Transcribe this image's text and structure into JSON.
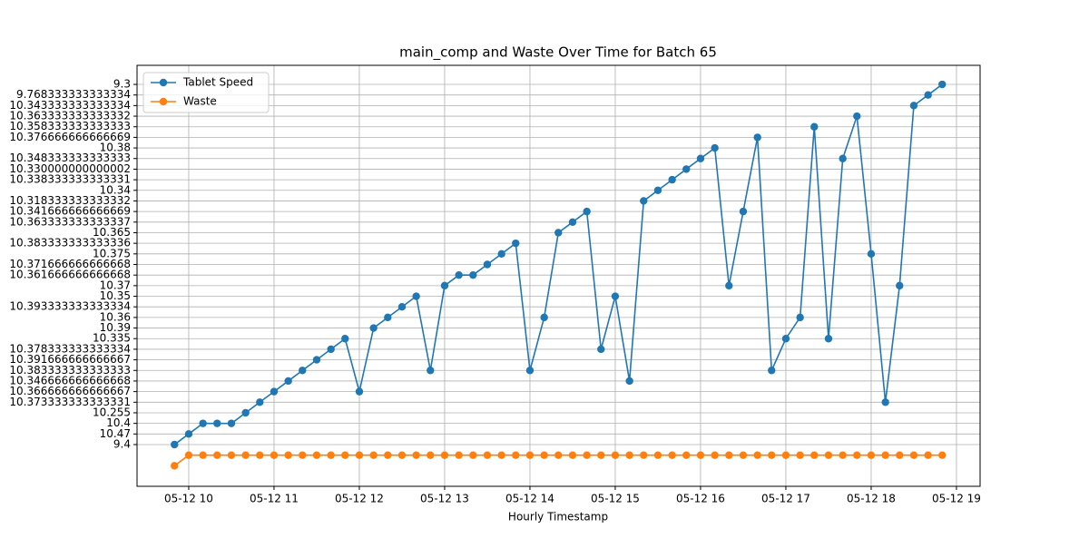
{
  "chart_data": {
    "type": "line",
    "title": "main_comp and Waste Over Time for Batch 65",
    "x_label": "Hourly Timestamp",
    "x": [
      9.833,
      10,
      10.167,
      10.333,
      10.5,
      10.667,
      10.833,
      11,
      11.167,
      11.333,
      11.5,
      11.667,
      11.833,
      12,
      12.167,
      12.333,
      12.5,
      12.667,
      12.833,
      13,
      13.167,
      13.333,
      13.5,
      13.667,
      13.833,
      14,
      14.167,
      14.333,
      14.5,
      14.667,
      14.833,
      15,
      15.167,
      15.333,
      15.5,
      15.667,
      15.833,
      16,
      16.167,
      16.333,
      16.5,
      16.667,
      16.833,
      17,
      17.167,
      17.333,
      17.5,
      17.667,
      17.833,
      18,
      18.167,
      18.333,
      18.5,
      18.667,
      18.833
    ],
    "series": [
      {
        "name": "Tablet Speed",
        "color": "#1f77b4",
        "values": [
          0,
          1,
          2,
          2,
          2,
          3,
          4,
          5,
          6,
          7,
          8,
          9,
          10,
          5,
          11,
          12,
          13,
          14,
          7,
          15,
          16,
          16,
          17,
          18,
          19,
          7,
          12,
          20,
          21,
          22,
          9,
          14,
          6,
          23,
          24,
          25,
          26,
          27,
          28,
          15,
          22,
          29,
          7,
          10,
          12,
          30,
          10,
          27,
          31,
          18,
          4,
          15,
          32,
          33,
          34
        ]
      },
      {
        "name": "Waste",
        "color": "#ff7f0e",
        "values": [
          -2,
          -1,
          -1,
          -1,
          -1,
          -1,
          -1,
          -1,
          -1,
          -1,
          -1,
          -1,
          -1,
          -1,
          -1,
          -1,
          -1,
          -1,
          -1,
          -1,
          -1,
          -1,
          -1,
          -1,
          -1,
          -1,
          -1,
          -1,
          -1,
          -1,
          -1,
          -1,
          -1,
          -1,
          -1,
          -1,
          -1,
          -1,
          -1,
          -1,
          -1,
          -1,
          -1,
          -1,
          -1,
          -1,
          -1,
          -1,
          -1,
          -1,
          -1,
          -1,
          -1,
          -1,
          -1
        ]
      }
    ],
    "xlim": [
      9.394,
      19.277
    ],
    "xticks": [
      {
        "value": 10,
        "label": "05-12 10"
      },
      {
        "value": 11,
        "label": "05-12 11"
      },
      {
        "value": 12,
        "label": "05-12 12"
      },
      {
        "value": 13,
        "label": "05-12 13"
      },
      {
        "value": 14,
        "label": "05-12 14"
      },
      {
        "value": 15,
        "label": "05-12 15"
      },
      {
        "value": 16,
        "label": "05-12 16"
      },
      {
        "value": 17,
        "label": "05-12 17"
      },
      {
        "value": 18,
        "label": "05-12 18"
      },
      {
        "value": 19,
        "label": "05-12 19"
      }
    ],
    "ylim": [
      -3.94,
      35.8
    ],
    "yticks": [
      {
        "value": 0,
        "label": "9.4"
      },
      {
        "value": 1,
        "label": "10.47"
      },
      {
        "value": 2,
        "label": "10.4"
      },
      {
        "value": 3,
        "label": "10.255"
      },
      {
        "value": 4,
        "label": "10.373333333333331"
      },
      {
        "value": 5,
        "label": "10.366666666666667"
      },
      {
        "value": 6,
        "label": "10.346666666666668"
      },
      {
        "value": 7,
        "label": "10.383333333333333"
      },
      {
        "value": 8,
        "label": "10.391666666666667"
      },
      {
        "value": 9,
        "label": "10.378333333333334"
      },
      {
        "value": 10,
        "label": "10.335"
      },
      {
        "value": 11,
        "label": "10.39"
      },
      {
        "value": 12,
        "label": "10.36"
      },
      {
        "value": 13,
        "label": "10.393333333333334"
      },
      {
        "value": 14,
        "label": "10.35"
      },
      {
        "value": 15,
        "label": "10.37"
      },
      {
        "value": 16,
        "label": "10.361666666666668"
      },
      {
        "value": 17,
        "label": "10.371666666666668"
      },
      {
        "value": 18,
        "label": "10.375"
      },
      {
        "value": 19,
        "label": "10.383333333333336"
      },
      {
        "value": 20,
        "label": "10.365"
      },
      {
        "value": 21,
        "label": "10.363333333333337"
      },
      {
        "value": 22,
        "label": "10.341666666666669"
      },
      {
        "value": 23,
        "label": "10.318333333333332"
      },
      {
        "value": 24,
        "label": "10.34"
      },
      {
        "value": 25,
        "label": "10.338333333333331"
      },
      {
        "value": 26,
        "label": "10.330000000000002"
      },
      {
        "value": 27,
        "label": "10.348333333333333"
      },
      {
        "value": 28,
        "label": "10.38"
      },
      {
        "value": 29,
        "label": "10.376666666666669"
      },
      {
        "value": 30,
        "label": "10.358333333333333"
      },
      {
        "value": 31,
        "label": "10.363333333333332"
      },
      {
        "value": 32,
        "label": "10.343333333333334"
      },
      {
        "value": 33,
        "label": "9.768333333333334"
      },
      {
        "value": 34,
        "label": "9.3"
      }
    ],
    "grid": true,
    "legend": "upper left"
  }
}
